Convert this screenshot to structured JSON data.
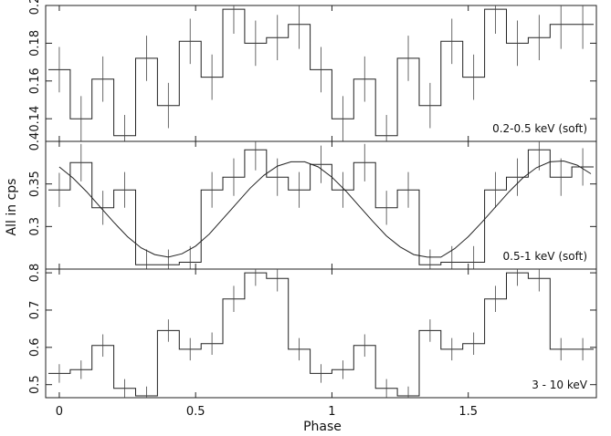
{
  "chart_data": {
    "type": "line",
    "xlabel": "Phase",
    "ylabel": "All in cps",
    "xlim": [
      -0.05,
      1.97
    ],
    "x_ticks": [
      0,
      0.5,
      1,
      1.5
    ],
    "x_tick_labels": [
      "0",
      "0.5",
      "1",
      "1.5"
    ],
    "bin_width": 0.08,
    "panels": [
      {
        "label": "0.2-0.5 keV (soft)",
        "ylim": [
          0.128,
          0.2
        ],
        "y_ticks": [
          0.14,
          0.16,
          0.18,
          0.2
        ],
        "y_tick_labels": [
          "0.14",
          "0.16",
          "0.18",
          "0.2"
        ],
        "x": [
          0,
          0.08,
          0.16,
          0.24,
          0.32,
          0.4,
          0.48,
          0.56,
          0.64,
          0.72,
          0.8,
          0.88,
          0.96,
          1.04,
          1.12,
          1.2,
          1.28,
          1.36,
          1.44,
          1.52,
          1.6,
          1.68,
          1.76,
          1.84,
          1.92
        ],
        "y": [
          0.166,
          0.14,
          0.161,
          0.131,
          0.172,
          0.147,
          0.181,
          0.162,
          0.198,
          0.18,
          0.183,
          0.19,
          0.166,
          0.14,
          0.161,
          0.131,
          0.172,
          0.147,
          0.181,
          0.162,
          0.198,
          0.18,
          0.183,
          0.19,
          0.19
        ],
        "err": [
          0.012,
          0.012,
          0.012,
          0.011,
          0.012,
          0.012,
          0.012,
          0.012,
          0.013,
          0.012,
          0.012,
          0.013,
          0.012,
          0.012,
          0.012,
          0.011,
          0.012,
          0.012,
          0.012,
          0.012,
          0.013,
          0.012,
          0.012,
          0.013,
          0.013
        ]
      },
      {
        "label": "0.5-1 keV (soft)",
        "ylim": [
          0.25,
          0.4
        ],
        "y_ticks": [
          0.3,
          0.35,
          0.4
        ],
        "y_tick_labels": [
          "0.3",
          "0.35",
          "0.4"
        ],
        "x": [
          0,
          0.08,
          0.16,
          0.24,
          0.32,
          0.4,
          0.48,
          0.56,
          0.64,
          0.72,
          0.8,
          0.88,
          0.96,
          1.04,
          1.12,
          1.2,
          1.28,
          1.36,
          1.44,
          1.52,
          1.6,
          1.68,
          1.76,
          1.84,
          1.92
        ],
        "y": [
          0.343,
          0.375,
          0.322,
          0.343,
          0.255,
          0.255,
          0.258,
          0.343,
          0.358,
          0.39,
          0.358,
          0.343,
          0.373,
          0.343,
          0.375,
          0.322,
          0.343,
          0.255,
          0.258,
          0.258,
          0.343,
          0.358,
          0.39,
          0.358,
          0.37
        ],
        "err": [
          0.02,
          0.022,
          0.02,
          0.021,
          0.018,
          0.018,
          0.019,
          0.021,
          0.022,
          0.024,
          0.022,
          0.021,
          0.022,
          0.021,
          0.022,
          0.02,
          0.021,
          0.018,
          0.019,
          0.019,
          0.021,
          0.022,
          0.024,
          0.022,
          0.022
        ],
        "model": {
          "name": "",
          "x": [
            -0.0,
            0.05,
            0.1,
            0.15,
            0.2,
            0.25,
            0.3,
            0.35,
            0.4,
            0.45,
            0.5,
            0.55,
            0.6,
            0.65,
            0.7,
            0.75,
            0.8,
            0.85,
            0.9,
            0.95,
            1.0,
            1.05,
            1.1,
            1.15,
            1.2,
            1.25,
            1.3,
            1.35,
            1.4,
            1.45,
            1.5,
            1.55,
            1.6,
            1.65,
            1.7,
            1.75,
            1.8,
            1.85,
            1.9,
            1.95
          ],
          "y": [
            0.37,
            0.357,
            0.341,
            0.323,
            0.305,
            0.288,
            0.275,
            0.267,
            0.264,
            0.268,
            0.277,
            0.291,
            0.309,
            0.327,
            0.345,
            0.36,
            0.371,
            0.376,
            0.376,
            0.37,
            0.358,
            0.342,
            0.324,
            0.306,
            0.289,
            0.276,
            0.267,
            0.264,
            0.264,
            0.274,
            0.288,
            0.305,
            0.323,
            0.341,
            0.357,
            0.369,
            0.376,
            0.377,
            0.372,
            0.362
          ]
        }
      },
      {
        "label": "3  -  10 keV",
        "ylim": [
          0.465,
          0.81
        ],
        "y_ticks": [
          0.5,
          0.6,
          0.7,
          0.8
        ],
        "y_tick_labels": [
          "0.5",
          "0.6",
          "0.7",
          "0.8"
        ],
        "x": [
          0,
          0.08,
          0.16,
          0.24,
          0.32,
          0.4,
          0.48,
          0.56,
          0.64,
          0.72,
          0.8,
          0.88,
          0.96,
          1.04,
          1.12,
          1.2,
          1.28,
          1.36,
          1.44,
          1.52,
          1.6,
          1.68,
          1.76,
          1.84,
          1.92
        ],
        "y": [
          0.53,
          0.54,
          0.605,
          0.49,
          0.47,
          0.645,
          0.595,
          0.61,
          0.73,
          0.8,
          0.785,
          0.595,
          0.53,
          0.54,
          0.605,
          0.49,
          0.47,
          0.645,
          0.595,
          0.61,
          0.73,
          0.8,
          0.785,
          0.595,
          0.595
        ],
        "err": [
          0.025,
          0.025,
          0.03,
          0.025,
          0.025,
          0.03,
          0.03,
          0.03,
          0.035,
          0.035,
          0.035,
          0.03,
          0.025,
          0.025,
          0.03,
          0.025,
          0.025,
          0.03,
          0.03,
          0.03,
          0.035,
          0.035,
          0.035,
          0.03,
          0.03
        ]
      }
    ]
  }
}
